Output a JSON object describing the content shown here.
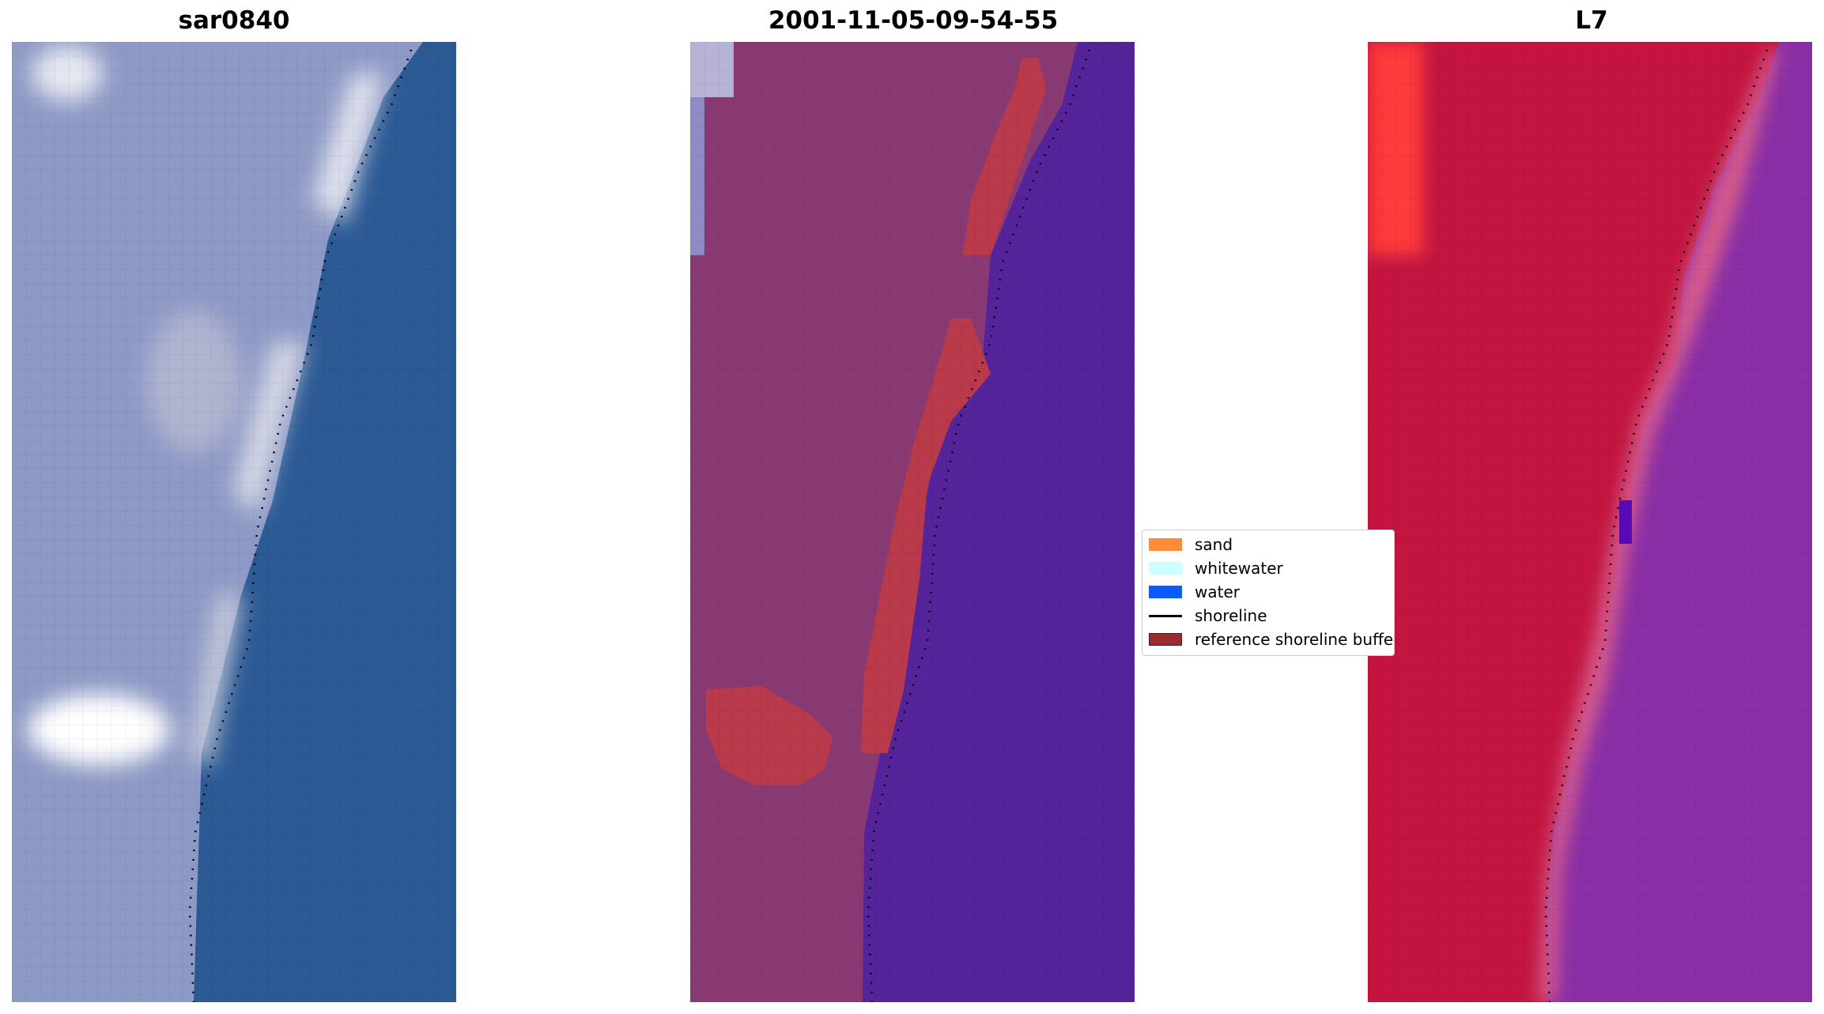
{
  "panels": [
    {
      "title": "sar0840"
    },
    {
      "title": "2001-11-05-09-54-55"
    },
    {
      "title": "L7"
    }
  ],
  "legend": {
    "items": [
      {
        "label": "sand",
        "color": "#ff8c3a",
        "kind": "patch"
      },
      {
        "label": "whitewater",
        "color": "#ccffff",
        "kind": "patch"
      },
      {
        "label": "water",
        "color": "#0a5bff",
        "kind": "patch"
      },
      {
        "label": "shoreline",
        "color": "#000000",
        "kind": "line"
      },
      {
        "label": "reference shoreline buffer",
        "color": "#9a2c32",
        "kind": "patch"
      }
    ]
  },
  "colors": {
    "rgb_land": "#8e9ac6",
    "rgb_water": "#2c5a95",
    "rgb_surf": "#e8e8f0",
    "class_land": "#8a3a72",
    "class_water": "#55239a",
    "class_buffer": "#b93a4a",
    "nir_land": "#c31540",
    "nir_water": "#8a2fa6",
    "nir_bright": "#ff3a3a"
  }
}
